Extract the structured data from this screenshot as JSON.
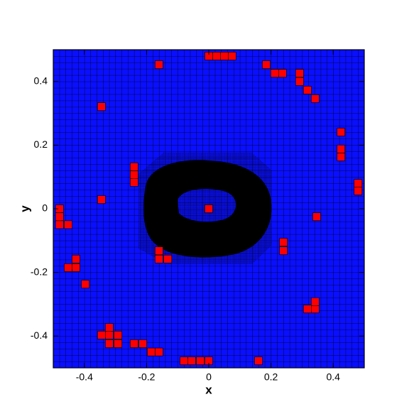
{
  "chart_data": {
    "type": "scatter",
    "x_label": "x",
    "y_label": "y",
    "xlim": [
      -0.5,
      0.5
    ],
    "ylim": [
      -0.5,
      0.5
    ],
    "xticks": [
      -0.4,
      -0.2,
      0,
      0.2,
      0.4
    ],
    "yticks": [
      -0.4,
      -0.2,
      0,
      0.2,
      0.4
    ],
    "color": "#ff0000",
    "background": "#0a10ff",
    "x": [
      0.0,
      0.025,
      0.05,
      0.075,
      -0.16,
      0.185,
      0.212,
      0.237,
      0.292,
      0.292,
      0.317,
      0.342,
      -0.345,
      0.425,
      0.425,
      0.425,
      -0.24,
      -0.24,
      -0.24,
      0.48,
      0.48,
      -0.345,
      -0.48,
      -0.48,
      -0.48,
      -0.452,
      0.0,
      0.347,
      -0.16,
      -0.16,
      -0.132,
      0.24,
      0.24,
      -0.427,
      -0.427,
      -0.452,
      -0.397,
      0.317,
      0.342,
      0.342,
      -0.32,
      -0.345,
      -0.32,
      -0.292,
      -0.32,
      -0.292,
      -0.24,
      -0.212,
      -0.185,
      -0.16,
      -0.08,
      -0.055,
      -0.027,
      0.0,
      0.16
    ],
    "values": [
      0.48,
      0.48,
      0.48,
      0.48,
      0.453,
      0.453,
      0.426,
      0.426,
      0.426,
      0.4,
      0.373,
      0.346,
      0.321,
      0.241,
      0.188,
      0.163,
      0.132,
      0.107,
      0.083,
      0.08,
      0.056,
      0.029,
      0.0,
      -0.025,
      -0.05,
      -0.05,
      0.0,
      -0.025,
      -0.132,
      -0.158,
      -0.158,
      -0.105,
      -0.132,
      -0.158,
      -0.185,
      -0.185,
      -0.237,
      -0.315,
      -0.315,
      -0.292,
      -0.373,
      -0.397,
      -0.397,
      -0.397,
      -0.424,
      -0.424,
      -0.424,
      -0.424,
      -0.45,
      -0.45,
      -0.478,
      -0.478,
      -0.478,
      -0.478,
      -0.478
    ]
  }
}
